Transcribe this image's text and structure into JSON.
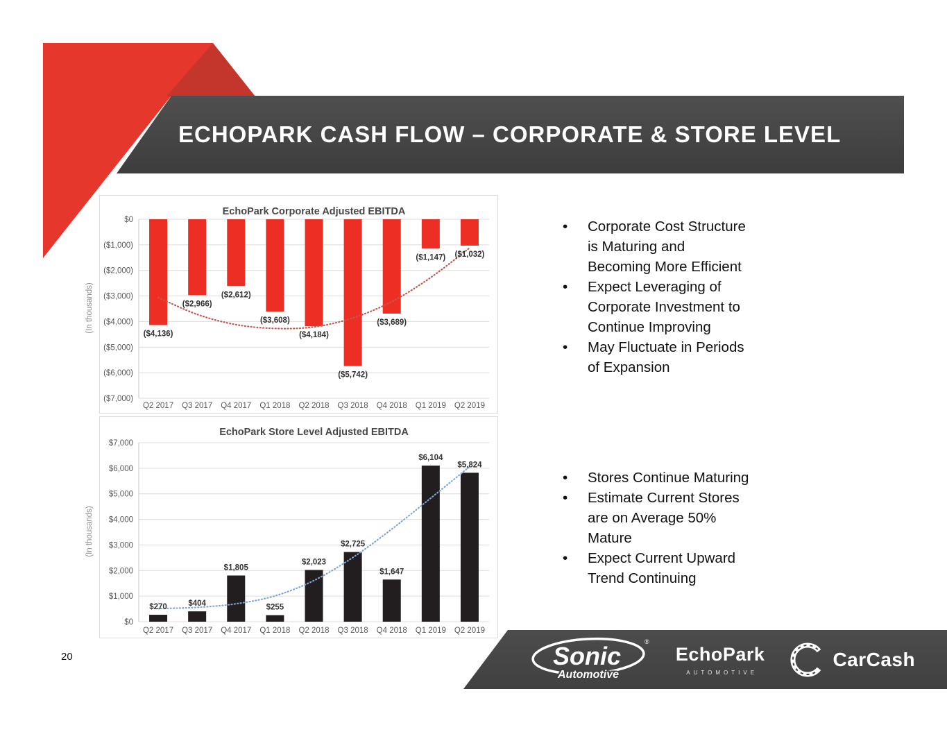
{
  "slide": {
    "title": "ECHOPARK CASH FLOW – CORPORATE & STORE LEVEL",
    "page_number": "20"
  },
  "colors": {
    "accent_red": "#ED2E24",
    "deco_red": "#E5372C",
    "deco_red_dark": "#C4352C",
    "banner_gray": "#464646",
    "bar_black": "#221E1F",
    "trend_red": "#C4574E",
    "trend_blue": "#7FA6D6",
    "grid_gray": "#DCDCDC",
    "tick_gray": "#595959"
  },
  "corporate_notes": {
    "items": [
      "Corporate Cost Structure\nis Maturing and\nBecoming More Efficient",
      "Expect Leveraging of\nCorporate Investment to\nContinue Improving",
      "May Fluctuate in Periods\nof Expansion"
    ]
  },
  "store_notes": {
    "items": [
      "Stores Continue Maturing",
      "Estimate Current Stores\nare on Average 50%\nMature",
      "Expect Current Upward\nTrend Continuing"
    ]
  },
  "chart_data": [
    {
      "type": "bar",
      "title": "EchoPark Corporate Adjusted EBITDA",
      "ylabel": "(In thousands)",
      "categories": [
        "Q2 2017",
        "Q3 2017",
        "Q4 2017",
        "Q1 2018",
        "Q2 2018",
        "Q3 2018",
        "Q4 2018",
        "Q1 2019",
        "Q2 2019"
      ],
      "values": [
        -4136,
        -2966,
        -2612,
        -3608,
        -4184,
        -5742,
        -3689,
        -1147,
        -1032
      ],
      "data_labels": [
        "($4,136)",
        "($2,966)",
        "($2,612)",
        "($3,608)",
        "($4,184)",
        "($5,742)",
        "($3,689)",
        "($1,147)",
        "($1,032)"
      ],
      "ylim": [
        -7000,
        0
      ],
      "ytick_values": [
        0,
        -1000,
        -2000,
        -3000,
        -4000,
        -5000,
        -6000,
        -7000
      ],
      "ytick_labels": [
        "$0",
        "($1,000)",
        "($2,000)",
        "($3,000)",
        "($4,000)",
        "($5,000)",
        "($6,000)",
        "($7,000)"
      ],
      "bar_color": "#ED2E24",
      "label_side": "below",
      "grid": true,
      "legend": "none",
      "trendline": {
        "style": "dotted",
        "color": "#C4574E",
        "values": [
          -3060,
          -3720,
          -4120,
          -4270,
          -4210,
          -3860,
          -3220,
          -2280,
          -1120
        ]
      }
    },
    {
      "type": "bar",
      "title": "EchoPark Store Level Adjusted EBITDA",
      "ylabel": "(In thousands)",
      "categories": [
        "Q2 2017",
        "Q3 2017",
        "Q4 2017",
        "Q1 2018",
        "Q2 2018",
        "Q3 2018",
        "Q4 2018",
        "Q1 2019",
        "Q2 2019"
      ],
      "values": [
        270,
        404,
        1805,
        255,
        2023,
        2725,
        1647,
        6104,
        5824
      ],
      "data_labels": [
        "$270",
        "$404",
        "$1,805",
        "$255",
        "$2,023",
        "$2,725",
        "$1,647",
        "$6,104",
        "$5,824"
      ],
      "ylim": [
        0,
        7000
      ],
      "ytick_values": [
        7000,
        6000,
        5000,
        4000,
        3000,
        2000,
        1000,
        0
      ],
      "ytick_labels": [
        "$7,000",
        "$6,000",
        "$5,000",
        "$4,000",
        "$3,000",
        "$2,000",
        "$1,000",
        "$0"
      ],
      "bar_color": "#221E1F",
      "label_side": "above",
      "grid": true,
      "legend": "none",
      "trendline": {
        "style": "dotted",
        "color": "#7FA6D6",
        "values": [
          510,
          560,
          700,
          1010,
          1610,
          2510,
          3620,
          4830,
          6060
        ]
      }
    }
  ],
  "footer": {
    "sonic_title": "Sonic",
    "sonic_sub": "Automotive",
    "sonic_mark": "®",
    "echopark_title": "EchoPark",
    "echopark_sub": "AUTOMOTIVE",
    "carcash_title": "CarCash"
  }
}
